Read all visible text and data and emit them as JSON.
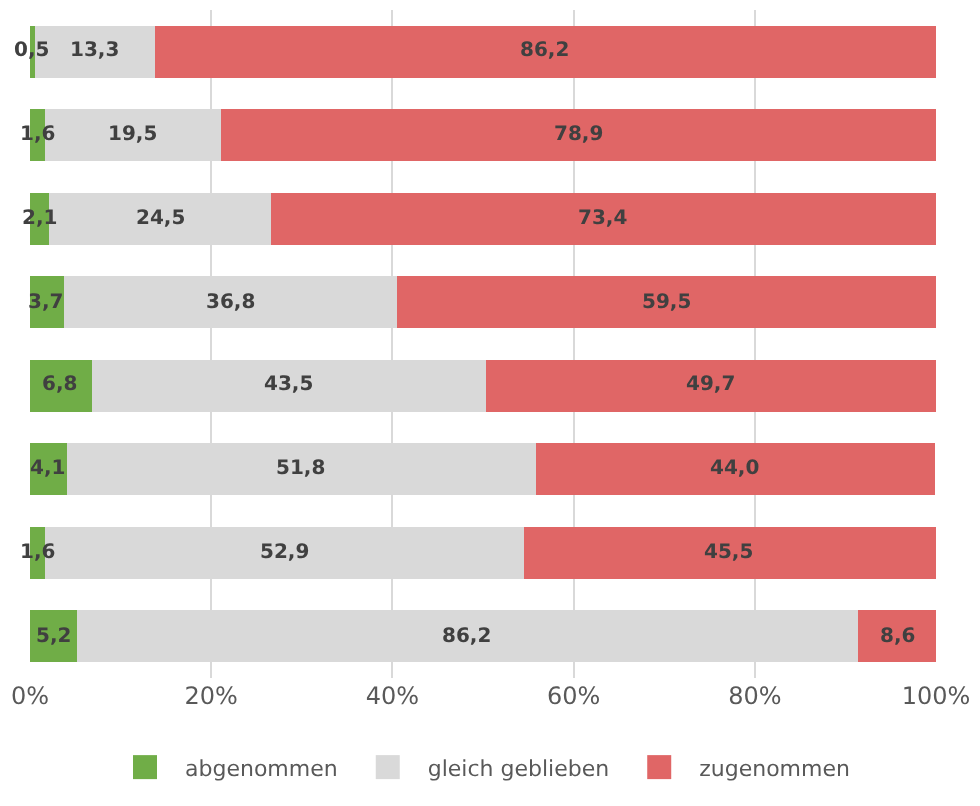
{
  "chart_data": {
    "type": "bar",
    "orientation": "horizontal",
    "stacked": true,
    "categories": [
      null,
      null,
      null,
      null,
      null,
      null,
      null,
      null
    ],
    "series": [
      {
        "name": "abgenommen",
        "color": "#70ad47",
        "values": [
          0.5,
          1.6,
          2.1,
          3.7,
          6.8,
          4.1,
          1.6,
          5.2
        ],
        "value_labels": [
          "0,5",
          "1,6",
          "2,1",
          "3,7",
          "6,8",
          "4,1",
          "1,6",
          "5,2"
        ]
      },
      {
        "name": "gleich geblieben",
        "color": "#d9d9d9",
        "values": [
          13.3,
          19.5,
          24.5,
          36.8,
          43.5,
          51.8,
          52.9,
          86.2
        ],
        "value_labels": [
          "13,3",
          "19,5",
          "24,5",
          "36,8",
          "43,5",
          "51,8",
          "52,9",
          "86,2"
        ]
      },
      {
        "name": "zugenommen",
        "color": "#e06666",
        "values": [
          86.2,
          78.9,
          73.4,
          59.5,
          49.7,
          44.0,
          45.5,
          8.6
        ],
        "value_labels": [
          "86,2",
          "78,9",
          "73,4",
          "59,5",
          "49,7",
          "44,0",
          "45,5",
          "8,6"
        ]
      }
    ],
    "xlim": [
      0,
      100
    ],
    "xticks": [
      {
        "value": 0,
        "label": "0%"
      },
      {
        "value": 20,
        "label": "20%"
      },
      {
        "value": 40,
        "label": "40%"
      },
      {
        "value": 60,
        "label": "60%"
      },
      {
        "value": 80,
        "label": "80%"
      },
      {
        "value": 100,
        "label": "100%"
      }
    ],
    "grid": "x",
    "legend": "bottom",
    "tick_labels": "x"
  }
}
